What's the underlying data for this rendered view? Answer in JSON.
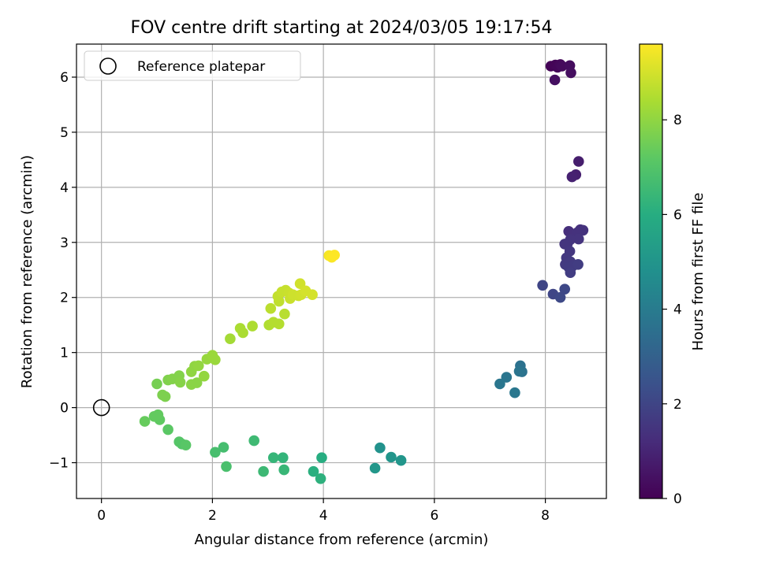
{
  "chart_data": {
    "type": "scatter",
    "title": "FOV centre drift starting at 2024/03/05 19:17:54",
    "xlabel": "Angular distance from reference (arcmin)",
    "ylabel": "Rotation from reference (arcmin)",
    "xlim": [
      -0.45,
      9.1
    ],
    "ylim": [
      -1.65,
      6.6
    ],
    "xticks": [
      0,
      2,
      4,
      6,
      8
    ],
    "yticks": [
      -1,
      0,
      1,
      2,
      3,
      4,
      5,
      6
    ],
    "grid": true,
    "legend": {
      "position": "top-left",
      "entries": [
        "Reference platepar"
      ]
    },
    "reference": {
      "x": 0,
      "y": 0,
      "marker": "open-circle",
      "label": "Reference platepar"
    },
    "colorbar": {
      "label": "Hours from first FF file",
      "colormap": "viridis",
      "range": [
        0,
        9.6
      ],
      "ticks": [
        0,
        2,
        4,
        6,
        8
      ]
    },
    "points": [
      {
        "x": 8.1,
        "y": 6.2,
        "t": 0.05
      },
      {
        "x": 8.18,
        "y": 6.22,
        "t": 0.1
      },
      {
        "x": 8.22,
        "y": 6.18,
        "t": 0.15
      },
      {
        "x": 8.27,
        "y": 6.23,
        "t": 0.2
      },
      {
        "x": 8.3,
        "y": 6.2,
        "t": 0.25
      },
      {
        "x": 8.44,
        "y": 6.21,
        "t": 0.3
      },
      {
        "x": 8.46,
        "y": 6.08,
        "t": 0.35
      },
      {
        "x": 8.17,
        "y": 5.95,
        "t": 0.4
      },
      {
        "x": 8.6,
        "y": 4.47,
        "t": 0.8
      },
      {
        "x": 8.55,
        "y": 4.23,
        "t": 0.85
      },
      {
        "x": 8.48,
        "y": 4.19,
        "t": 0.9
      },
      {
        "x": 8.42,
        "y": 3.2,
        "t": 1.3
      },
      {
        "x": 8.5,
        "y": 3.15,
        "t": 1.35
      },
      {
        "x": 8.63,
        "y": 3.23,
        "t": 1.35
      },
      {
        "x": 8.68,
        "y": 3.22,
        "t": 1.4
      },
      {
        "x": 8.58,
        "y": 3.18,
        "t": 1.4
      },
      {
        "x": 8.6,
        "y": 3.06,
        "t": 1.45
      },
      {
        "x": 8.45,
        "y": 3.05,
        "t": 1.45
      },
      {
        "x": 8.4,
        "y": 2.98,
        "t": 1.5
      },
      {
        "x": 8.35,
        "y": 2.97,
        "t": 1.5
      },
      {
        "x": 8.44,
        "y": 2.84,
        "t": 1.55
      },
      {
        "x": 8.38,
        "y": 2.72,
        "t": 1.6
      },
      {
        "x": 8.36,
        "y": 2.6,
        "t": 1.65
      },
      {
        "x": 8.45,
        "y": 2.65,
        "t": 1.65
      },
      {
        "x": 8.42,
        "y": 2.55,
        "t": 1.7
      },
      {
        "x": 8.48,
        "y": 2.56,
        "t": 1.7
      },
      {
        "x": 8.59,
        "y": 2.6,
        "t": 1.75
      },
      {
        "x": 8.45,
        "y": 2.45,
        "t": 1.75
      },
      {
        "x": 7.95,
        "y": 2.22,
        "t": 2.0
      },
      {
        "x": 8.14,
        "y": 2.06,
        "t": 2.05
      },
      {
        "x": 8.35,
        "y": 2.15,
        "t": 2.1
      },
      {
        "x": 8.27,
        "y": 2.0,
        "t": 2.15
      },
      {
        "x": 7.55,
        "y": 0.76,
        "t": 3.6
      },
      {
        "x": 7.58,
        "y": 0.65,
        "t": 3.65
      },
      {
        "x": 7.53,
        "y": 0.66,
        "t": 3.7
      },
      {
        "x": 7.3,
        "y": 0.55,
        "t": 3.75
      },
      {
        "x": 7.18,
        "y": 0.43,
        "t": 3.8
      },
      {
        "x": 7.45,
        "y": 0.27,
        "t": 3.85
      },
      {
        "x": 5.02,
        "y": -0.73,
        "t": 4.9
      },
      {
        "x": 5.22,
        "y": -0.9,
        "t": 5.0
      },
      {
        "x": 5.4,
        "y": -0.96,
        "t": 5.05
      },
      {
        "x": 4.93,
        "y": -1.1,
        "t": 5.1
      },
      {
        "x": 3.97,
        "y": -0.91,
        "t": 6.0
      },
      {
        "x": 3.82,
        "y": -1.16,
        "t": 6.1
      },
      {
        "x": 3.95,
        "y": -1.29,
        "t": 6.15
      },
      {
        "x": 3.27,
        "y": -0.91,
        "t": 6.3
      },
      {
        "x": 3.1,
        "y": -0.91,
        "t": 6.35
      },
      {
        "x": 3.29,
        "y": -1.13,
        "t": 6.4
      },
      {
        "x": 2.92,
        "y": -1.16,
        "t": 6.5
      },
      {
        "x": 2.75,
        "y": -0.6,
        "t": 6.55
      },
      {
        "x": 2.2,
        "y": -0.72,
        "t": 6.7
      },
      {
        "x": 2.05,
        "y": -0.81,
        "t": 6.75
      },
      {
        "x": 2.25,
        "y": -1.07,
        "t": 6.8
      },
      {
        "x": 1.45,
        "y": -0.66,
        "t": 7.0
      },
      {
        "x": 1.4,
        "y": -0.62,
        "t": 7.05
      },
      {
        "x": 1.52,
        "y": -0.68,
        "t": 7.1
      },
      {
        "x": 1.2,
        "y": -0.4,
        "t": 7.15
      },
      {
        "x": 1.05,
        "y": -0.22,
        "t": 7.25
      },
      {
        "x": 1.02,
        "y": -0.13,
        "t": 7.3
      },
      {
        "x": 0.95,
        "y": -0.16,
        "t": 7.3
      },
      {
        "x": 0.78,
        "y": -0.25,
        "t": 7.35
      },
      {
        "x": 1.0,
        "y": 0.43,
        "t": 7.6
      },
      {
        "x": 1.15,
        "y": 0.2,
        "t": 7.7
      },
      {
        "x": 1.1,
        "y": 0.23,
        "t": 7.7
      },
      {
        "x": 1.2,
        "y": 0.5,
        "t": 7.75
      },
      {
        "x": 1.28,
        "y": 0.52,
        "t": 7.8
      },
      {
        "x": 1.4,
        "y": 0.58,
        "t": 7.8
      },
      {
        "x": 1.42,
        "y": 0.46,
        "t": 7.85
      },
      {
        "x": 1.62,
        "y": 0.42,
        "t": 7.9
      },
      {
        "x": 1.72,
        "y": 0.45,
        "t": 7.9
      },
      {
        "x": 1.68,
        "y": 0.75,
        "t": 8.0
      },
      {
        "x": 1.62,
        "y": 0.65,
        "t": 8.0
      },
      {
        "x": 1.85,
        "y": 0.57,
        "t": 8.05
      },
      {
        "x": 1.9,
        "y": 0.88,
        "t": 8.1
      },
      {
        "x": 2.0,
        "y": 0.95,
        "t": 8.15
      },
      {
        "x": 2.05,
        "y": 0.87,
        "t": 8.15
      },
      {
        "x": 1.75,
        "y": 0.76,
        "t": 8.05
      },
      {
        "x": 2.32,
        "y": 1.25,
        "t": 8.3
      },
      {
        "x": 2.5,
        "y": 1.44,
        "t": 8.4
      },
      {
        "x": 2.55,
        "y": 1.36,
        "t": 8.4
      },
      {
        "x": 2.72,
        "y": 1.48,
        "t": 8.45
      },
      {
        "x": 3.02,
        "y": 1.5,
        "t": 8.5
      },
      {
        "x": 3.2,
        "y": 1.52,
        "t": 8.55
      },
      {
        "x": 3.1,
        "y": 1.55,
        "t": 8.55
      },
      {
        "x": 3.05,
        "y": 1.8,
        "t": 8.65
      },
      {
        "x": 3.3,
        "y": 1.7,
        "t": 8.6
      },
      {
        "x": 3.2,
        "y": 1.93,
        "t": 8.7
      },
      {
        "x": 3.18,
        "y": 2.02,
        "t": 8.75
      },
      {
        "x": 3.25,
        "y": 2.1,
        "t": 8.8
      },
      {
        "x": 3.32,
        "y": 2.13,
        "t": 8.8
      },
      {
        "x": 3.38,
        "y": 2.08,
        "t": 8.85
      },
      {
        "x": 3.4,
        "y": 1.98,
        "t": 8.85
      },
      {
        "x": 3.45,
        "y": 2.05,
        "t": 8.9
      },
      {
        "x": 3.55,
        "y": 2.03,
        "t": 8.9
      },
      {
        "x": 3.6,
        "y": 2.05,
        "t": 8.95
      },
      {
        "x": 3.58,
        "y": 2.25,
        "t": 8.95
      },
      {
        "x": 3.68,
        "y": 2.12,
        "t": 9.0
      },
      {
        "x": 3.8,
        "y": 2.05,
        "t": 9.0
      },
      {
        "x": 4.1,
        "y": 2.76,
        "t": 9.5
      },
      {
        "x": 4.15,
        "y": 2.73,
        "t": 9.55
      },
      {
        "x": 4.2,
        "y": 2.77,
        "t": 9.6
      }
    ]
  }
}
